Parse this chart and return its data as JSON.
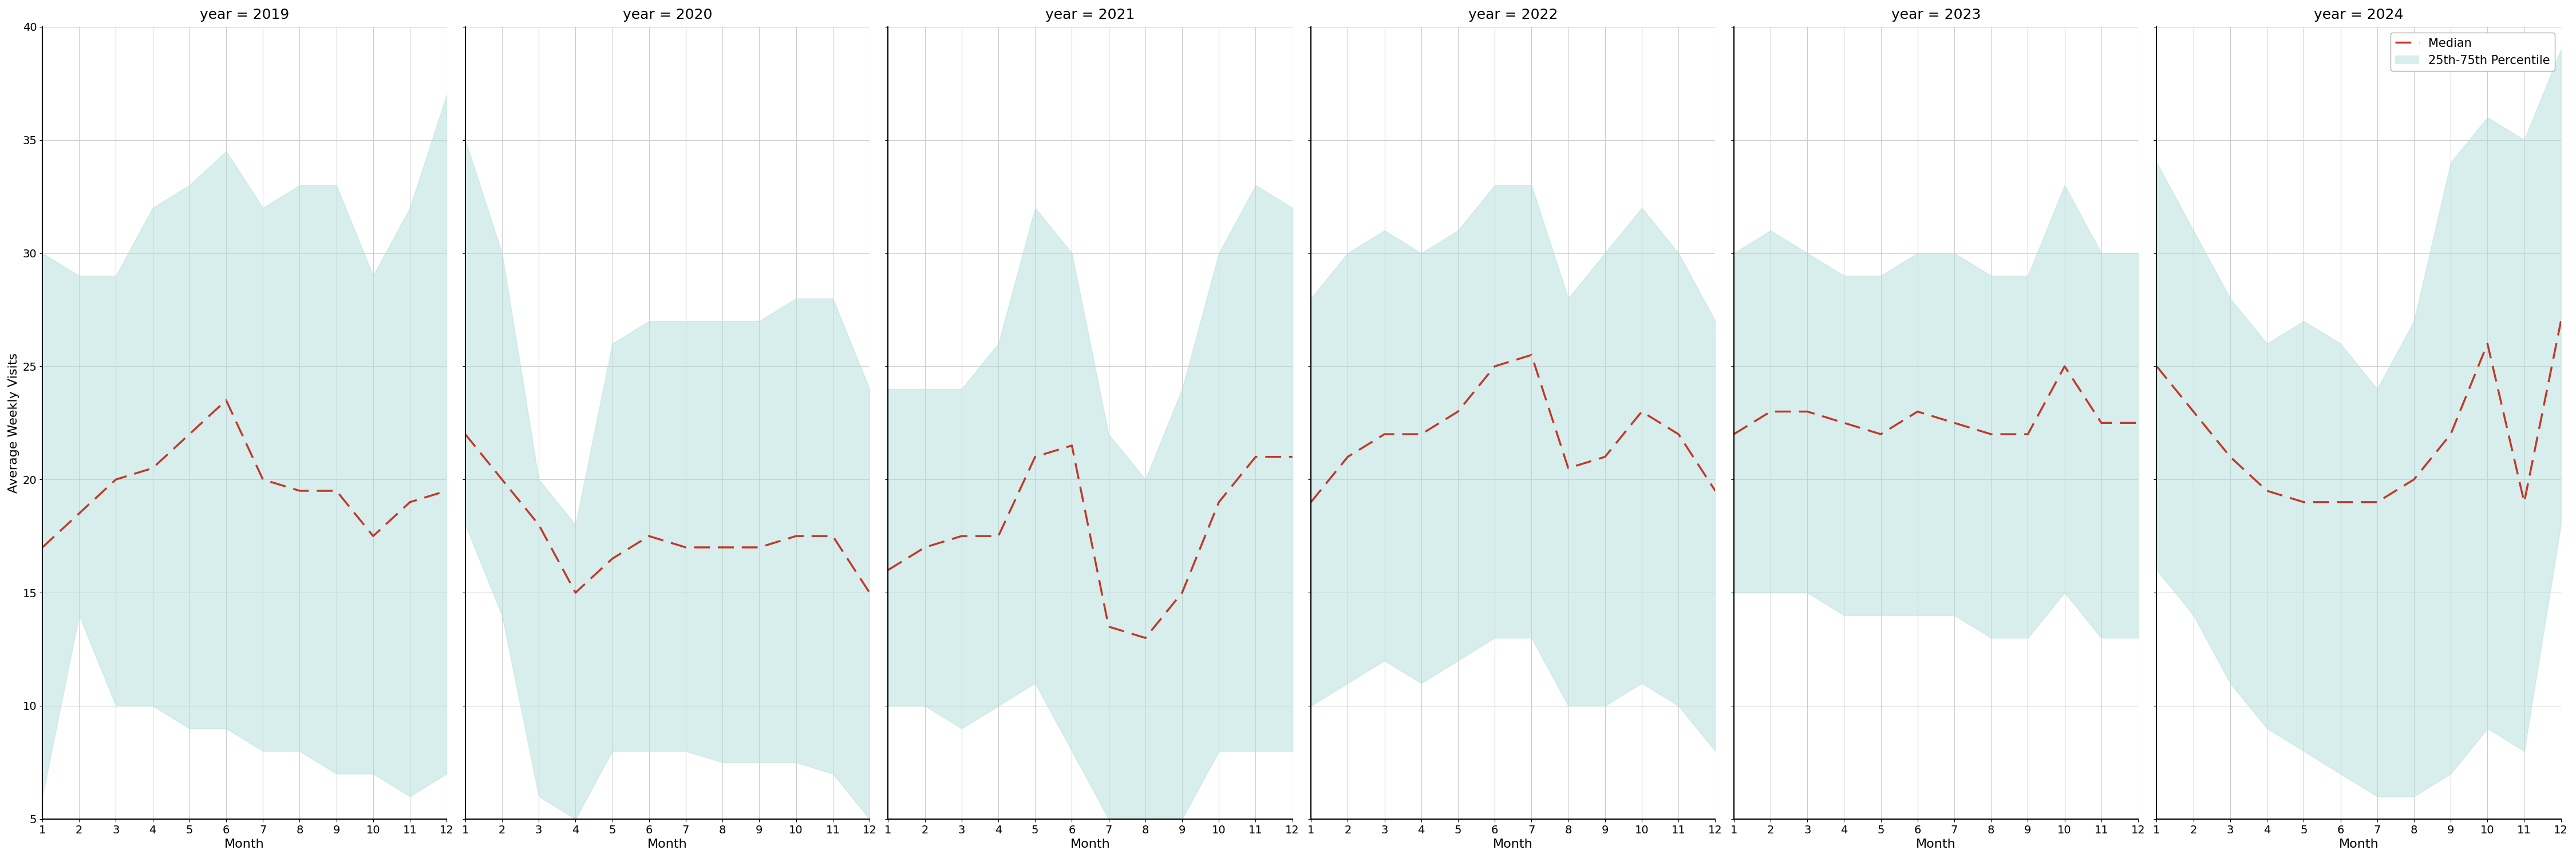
{
  "years": [
    2019,
    2020,
    2021,
    2022,
    2023,
    2024
  ],
  "months": [
    1,
    2,
    3,
    4,
    5,
    6,
    7,
    8,
    9,
    10,
    11,
    12
  ],
  "median": {
    "2019": [
      17,
      18.5,
      20,
      20.5,
      22,
      23.5,
      20,
      19.5,
      19.5,
      17.5,
      19,
      19.5
    ],
    "2020": [
      22,
      20,
      18,
      15,
      16.5,
      17.5,
      17,
      17,
      17,
      17.5,
      17.5,
      15
    ],
    "2021": [
      16,
      17,
      17.5,
      17.5,
      21,
      21.5,
      13.5,
      13,
      15,
      19,
      21,
      21
    ],
    "2022": [
      19,
      21,
      22,
      22,
      23,
      25,
      25.5,
      20.5,
      21,
      23,
      22,
      19.5
    ],
    "2023": [
      22,
      23,
      23,
      22.5,
      22,
      23,
      22.5,
      22,
      22,
      25,
      22.5,
      22.5
    ],
    "2024": [
      25,
      23,
      21,
      19.5,
      19,
      19,
      19,
      20,
      22,
      26,
      19,
      27
    ]
  },
  "p25": {
    "2019": [
      6,
      14,
      10,
      10,
      9,
      9,
      8,
      8,
      7,
      7,
      6,
      7
    ],
    "2020": [
      18,
      14,
      6,
      5,
      8,
      8,
      8,
      7.5,
      7.5,
      7.5,
      7,
      5
    ],
    "2021": [
      10,
      10,
      9,
      10,
      11,
      8,
      5,
      5,
      5,
      8,
      8,
      8
    ],
    "2022": [
      10,
      11,
      12,
      11,
      12,
      13,
      13,
      10,
      10,
      11,
      10,
      8
    ],
    "2023": [
      15,
      15,
      15,
      14,
      14,
      14,
      14,
      13,
      13,
      15,
      13,
      13
    ],
    "2024": [
      16,
      14,
      11,
      9,
      8,
      7,
      6,
      6,
      7,
      9,
      8,
      18
    ]
  },
  "p75": {
    "2019": [
      30,
      29,
      29,
      32,
      33,
      34.5,
      32,
      33,
      33,
      29,
      32,
      37
    ],
    "2020": [
      35,
      30,
      20,
      18,
      26,
      27,
      27,
      27,
      27,
      28,
      28,
      24
    ],
    "2021": [
      24,
      24,
      24,
      26,
      32,
      30,
      22,
      20,
      24,
      30,
      33,
      32
    ],
    "2022": [
      28,
      30,
      31,
      30,
      31,
      33,
      33,
      28,
      30,
      32,
      30,
      27
    ],
    "2023": [
      30,
      31,
      30,
      29,
      29,
      30,
      30,
      29,
      29,
      33,
      30,
      30
    ],
    "2024": [
      34,
      31,
      28,
      26,
      27,
      26,
      24,
      27,
      34,
      36,
      35,
      39
    ]
  },
  "ylim": [
    5,
    40
  ],
  "yticks": [
    5,
    10,
    15,
    20,
    25,
    30,
    35,
    40
  ],
  "ylabel": "Average Weekly Visits",
  "xlabel": "Month",
  "fill_color": "#b2dfdb",
  "fill_alpha": 0.5,
  "line_color": "#c0392b",
  "line_width": 2.5,
  "bg_color": "#ffffff",
  "grid_color": "#cccccc",
  "title_fontsize": 18,
  "label_fontsize": 16,
  "tick_fontsize": 14,
  "legend_fontsize": 15
}
